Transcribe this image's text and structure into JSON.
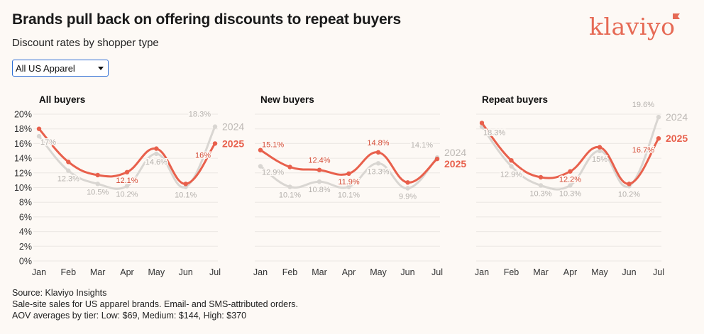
{
  "header": {
    "title": "Brands pull back on offering discounts to repeat buyers",
    "subtitle": "Discount rates by shopper type"
  },
  "logo": {
    "text": "klaviyo",
    "color": "#e66a55"
  },
  "filter": {
    "selected": "All US Apparel",
    "icon": "chevron-down-icon"
  },
  "footer": {
    "source": "Source: Klaviyo Insights",
    "note1": "Sale-site sales for US apparel brands. Email- and SMS-attributed orders.",
    "note2": "AOV averages by tier: Low: $69, Medium: $144, High: $370"
  },
  "colors": {
    "series_2025": "#e8604c",
    "series_2024": "#d9d6d2",
    "grid": "#ece8e4"
  },
  "chart_data": [
    {
      "type": "line",
      "title": "All buyers",
      "x": [
        "Jan",
        "Feb",
        "Mar",
        "Apr",
        "May",
        "Jun",
        "Jul"
      ],
      "yticks": [
        "20%",
        "18%",
        "16%",
        "14%",
        "12%",
        "10%",
        "8%",
        "6%",
        "4%",
        "2%",
        "0%"
      ],
      "ylim": [
        0,
        20
      ],
      "series": [
        {
          "name": "2024",
          "values": [
            17,
            12.3,
            10.5,
            10.2,
            14.6,
            10.1,
            18.3
          ],
          "labels": [
            "17%",
            "12.3%",
            "10.5%",
            "10.2%",
            "14.6%",
            "10.1%",
            "18.3%"
          ]
        },
        {
          "name": "2025",
          "values": [
            18,
            13.5,
            11.7,
            12.1,
            15.3,
            10.5,
            16
          ],
          "labels": [
            "",
            "",
            "",
            "12.1%",
            "",
            "",
            "16%"
          ]
        }
      ]
    },
    {
      "type": "line",
      "title": "New buyers",
      "x": [
        "Jan",
        "Feb",
        "Mar",
        "Apr",
        "May",
        "Jun",
        "Jul"
      ],
      "ylim": [
        0,
        20
      ],
      "series": [
        {
          "name": "2024",
          "values": [
            12.9,
            10.1,
            10.8,
            10.1,
            13.3,
            9.9,
            14.1
          ],
          "labels": [
            "12.9%",
            "10.1%",
            "10.8%",
            "10.1%",
            "13.3%",
            "9.9%",
            "14.1%"
          ]
        },
        {
          "name": "2025",
          "values": [
            15.1,
            12.8,
            12.4,
            11.9,
            14.8,
            10.7,
            13.9
          ],
          "labels": [
            "15.1%",
            "",
            "12.4%",
            "11.9%",
            "14.8%",
            "",
            ""
          ]
        }
      ]
    },
    {
      "type": "line",
      "title": "Repeat buyers",
      "x": [
        "Jan",
        "Feb",
        "Mar",
        "Apr",
        "May",
        "Jun",
        "Jul"
      ],
      "ylim": [
        0,
        20
      ],
      "series": [
        {
          "name": "2024",
          "values": [
            18.3,
            12.9,
            10.3,
            10.3,
            15,
            10.2,
            19.6
          ],
          "labels": [
            "18.3%",
            "12.9%",
            "10.3%",
            "10.3%",
            "15%",
            "10.2%",
            "19.6%"
          ]
        },
        {
          "name": "2025",
          "values": [
            18.8,
            13.7,
            11.4,
            12.2,
            15.5,
            10.5,
            16.7
          ],
          "labels": [
            "",
            "",
            "",
            "12.2%",
            "",
            "",
            "16.7%"
          ]
        }
      ]
    }
  ]
}
